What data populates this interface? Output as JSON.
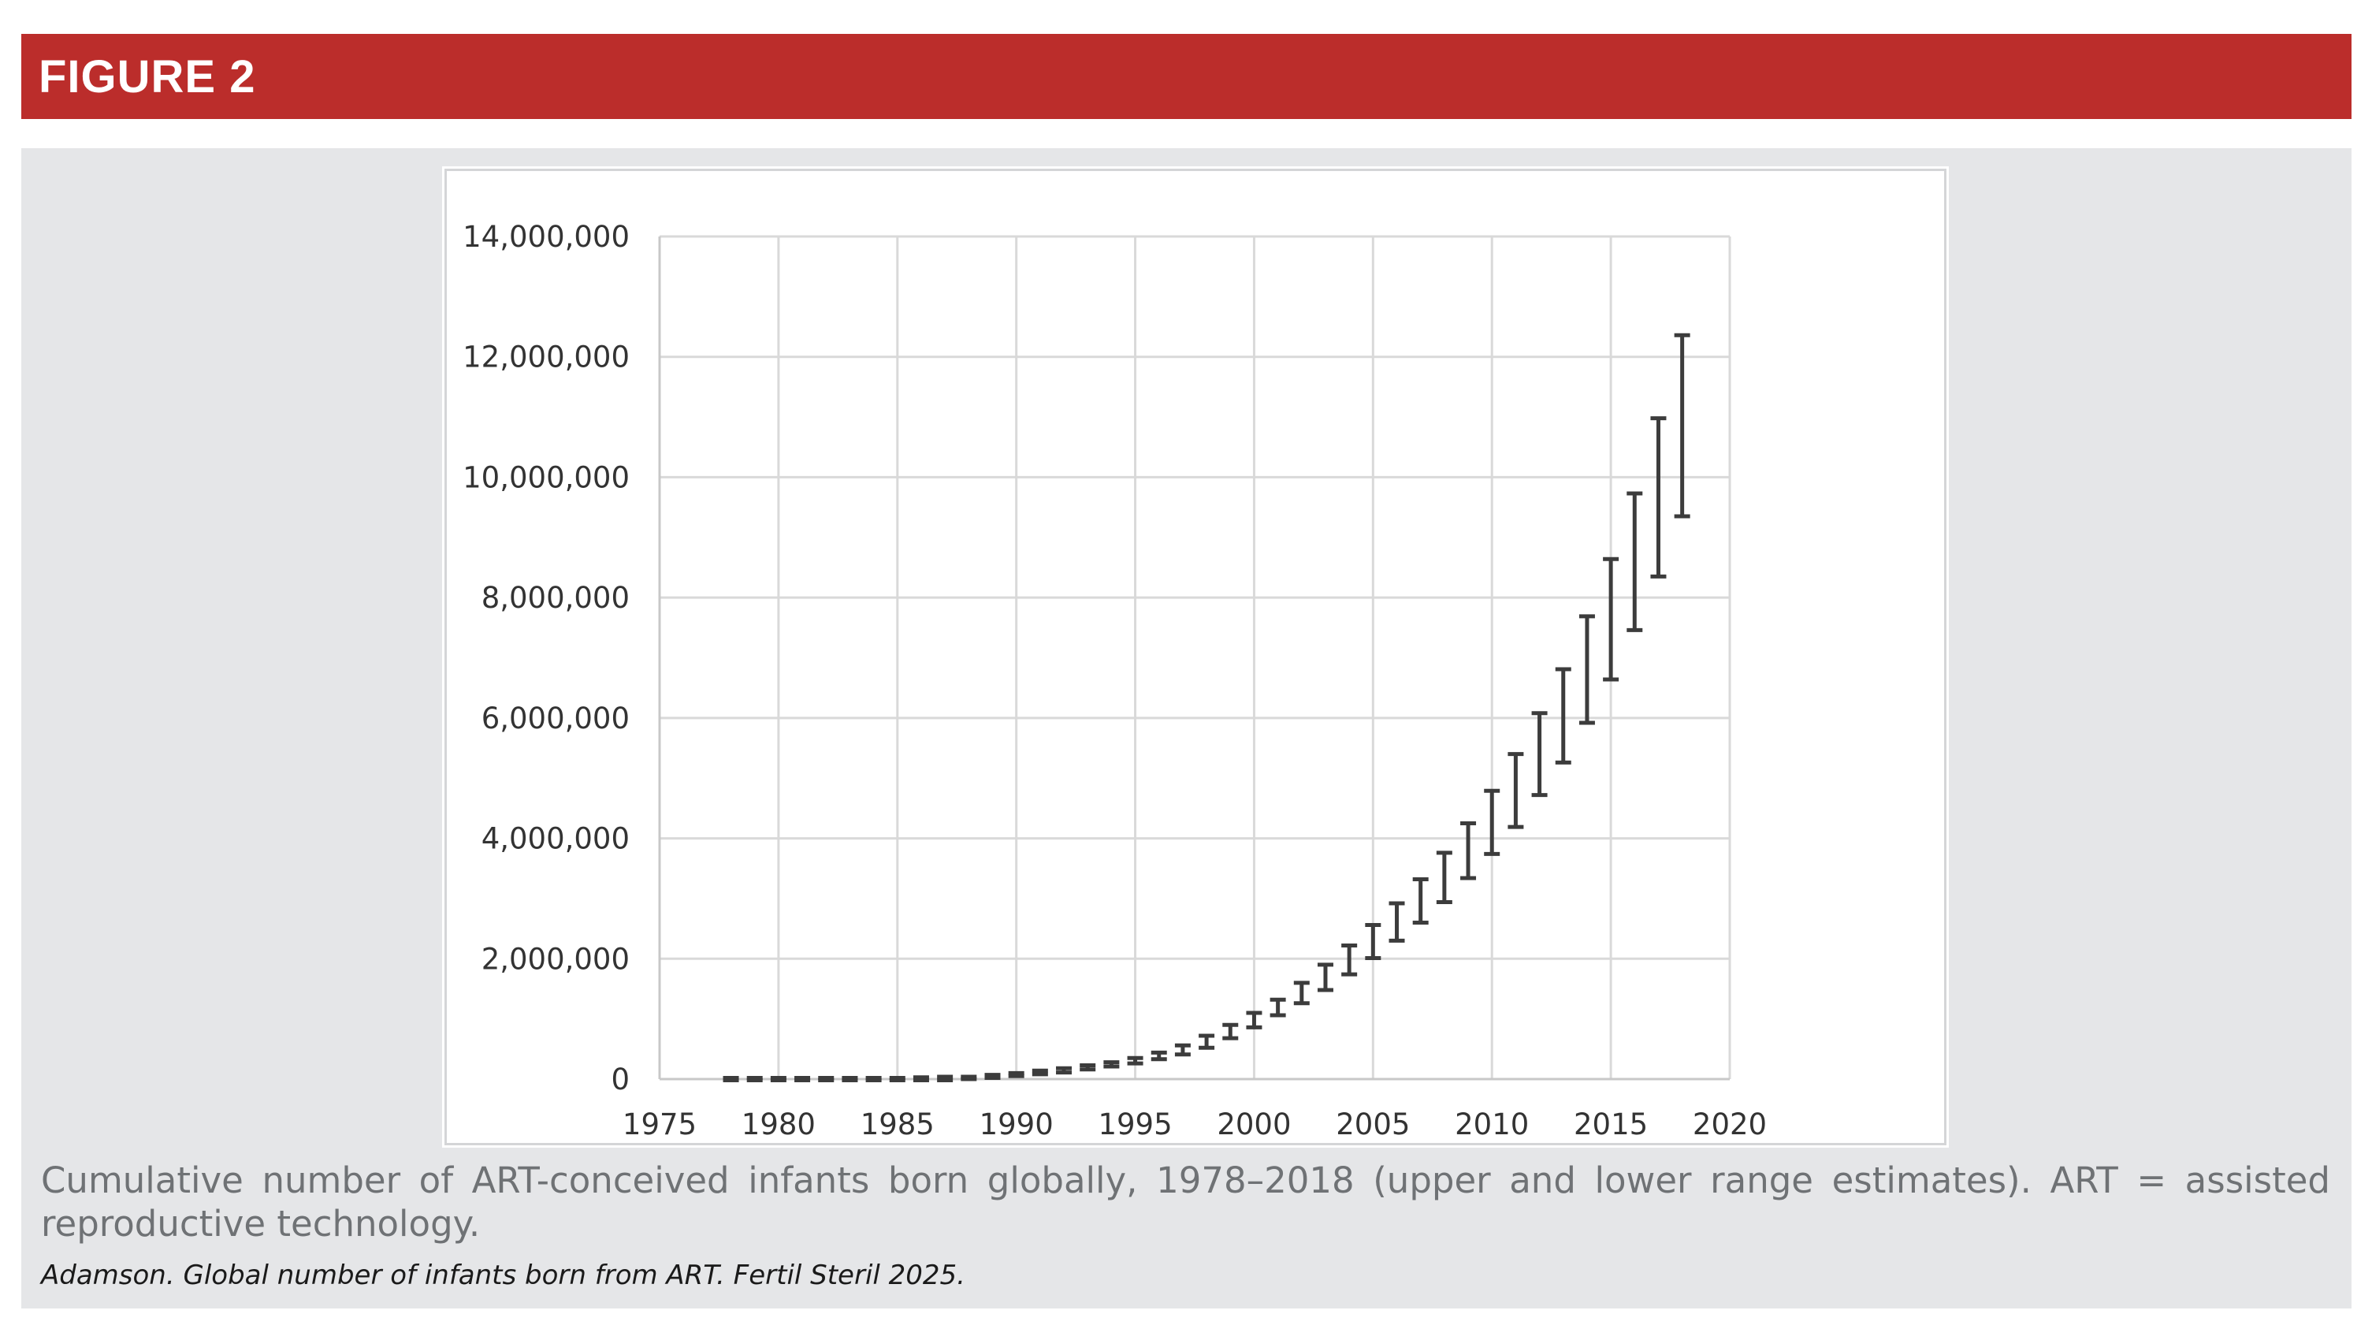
{
  "figure": {
    "label": "FIGURE 2",
    "caption": "Cumulative number of ART-conceived infants born globally, 1978–2018 (upper and lower range estimates). ART = assisted reproductive technology.",
    "citation": "Adamson. Global number of infants born from ART. Fertil Steril 2025."
  },
  "colors": {
    "header": "#bb2d2b",
    "panel": "#e5e6e8",
    "errorbar": "#3c3c3c",
    "grid": "#d9d9d9"
  },
  "chart_data": {
    "type": "errorbar",
    "title": "",
    "xlabel": "",
    "ylabel": "",
    "xlim": [
      1975,
      2020
    ],
    "ylim": [
      0,
      14000000
    ],
    "x_ticks": [
      1975,
      1980,
      1985,
      1990,
      1995,
      2000,
      2005,
      2010,
      2015,
      2020
    ],
    "y_ticks": [
      0,
      2000000,
      4000000,
      6000000,
      8000000,
      10000000,
      12000000,
      14000000
    ],
    "x_tick_labels": [
      "1975",
      "1980",
      "1985",
      "1990",
      "1995",
      "2000",
      "2005",
      "2010",
      "2015",
      "2020"
    ],
    "y_tick_labels": [
      "0",
      "2,000,000",
      "4,000,000",
      "6,000,000",
      "8,000,000",
      "10,000,000",
      "12,000,000",
      "14,000,000"
    ],
    "grid": true,
    "legend": "none",
    "x": [
      1978,
      1979,
      1980,
      1981,
      1982,
      1983,
      1984,
      1985,
      1986,
      1987,
      1988,
      1989,
      1990,
      1991,
      1992,
      1993,
      1994,
      1995,
      1996,
      1997,
      1998,
      1999,
      2000,
      2001,
      2002,
      2003,
      2004,
      2005,
      2006,
      2007,
      2008,
      2009,
      2010,
      2011,
      2012,
      2013,
      2014,
      2015,
      2016,
      2017,
      2018
    ],
    "lower": [
      0,
      0,
      0,
      0,
      0,
      0,
      0,
      0,
      0,
      0,
      0,
      20000,
      50000,
      80000,
      110000,
      160000,
      210000,
      260000,
      330000,
      410000,
      520000,
      680000,
      860000,
      1060000,
      1260000,
      1480000,
      1740000,
      2010000,
      2300000,
      2600000,
      2940000,
      3340000,
      3740000,
      4190000,
      4720000,
      5260000,
      5920000,
      6640000,
      7460000,
      8350000,
      9350000
    ],
    "upper": [
      0,
      0,
      0,
      0,
      0,
      0,
      0,
      0,
      10000,
      20000,
      40000,
      70000,
      100000,
      140000,
      180000,
      230000,
      280000,
      350000,
      440000,
      560000,
      720000,
      900000,
      1100000,
      1320000,
      1600000,
      1900000,
      2220000,
      2560000,
      2920000,
      3320000,
      3760000,
      4250000,
      4790000,
      5400000,
      6080000,
      6810000,
      7690000,
      8640000,
      9730000,
      10980000,
      12360000
    ]
  }
}
